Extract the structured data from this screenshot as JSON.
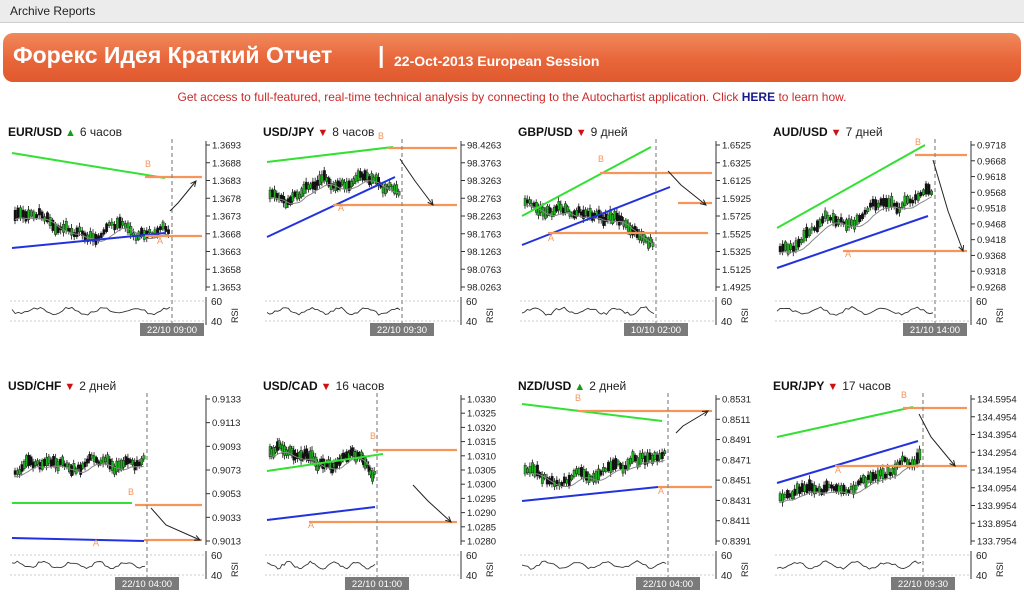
{
  "header": {
    "archive_label": "Archive Reports"
  },
  "banner": {
    "title": "Форекс Идея Краткий Отчет",
    "separator": "|",
    "session": "22-Oct-2013 European Session"
  },
  "promo": {
    "text_before": "Get access to full-featured, real-time technical analysis by connecting to the Autochartist application. Click ",
    "link": "HERE",
    "text_after": " to learn how."
  },
  "panels": [
    {
      "symbol": "EUR/USD",
      "direction": "up",
      "arrow": "▲",
      "timeframe": "6 часов",
      "ticks": [
        "1.3693",
        "1.3688",
        "1.3683",
        "1.3678",
        "1.3673",
        "1.3668",
        "1.3663",
        "1.3658",
        "1.3653"
      ],
      "rsi_labels": [
        "60",
        "40"
      ],
      "rsi_axis": "RSI",
      "date_label": "22/10 09:00",
      "pattern_labels": [
        "B",
        "A"
      ]
    },
    {
      "symbol": "USD/JPY",
      "direction": "down",
      "arrow": "▼",
      "timeframe": "8 часов",
      "ticks": [
        "98.4263",
        "98.3763",
        "98.3263",
        "98.2763",
        "98.2263",
        "98.1763",
        "98.1263",
        "98.0763",
        "98.0263"
      ],
      "rsi_labels": [
        "60",
        "40"
      ],
      "rsi_axis": "RSI",
      "date_label": "22/10 09:30",
      "pattern_labels": [
        "B",
        "A"
      ]
    },
    {
      "symbol": "GBP/USD",
      "direction": "down",
      "arrow": "▼",
      "timeframe": "9 дней",
      "ticks": [
        "1.6525",
        "1.6325",
        "1.6125",
        "1.5925",
        "1.5725",
        "1.5525",
        "1.5325",
        "1.5125",
        "1.4925"
      ],
      "rsi_labels": [
        "60",
        "40"
      ],
      "rsi_axis": "RSI",
      "date_label": "10/10 02:00",
      "pattern_labels": [
        "B",
        "A"
      ]
    },
    {
      "symbol": "AUD/USD",
      "direction": "down",
      "arrow": "▼",
      "timeframe": "7 дней",
      "ticks": [
        "0.9718",
        "0.9668",
        "0.9618",
        "0.9568",
        "0.9518",
        "0.9468",
        "0.9418",
        "0.9368",
        "0.9318",
        "0.9268"
      ],
      "rsi_labels": [
        "60",
        "40"
      ],
      "rsi_axis": "RSI",
      "date_label": "21/10 14:00",
      "pattern_labels": [
        "B",
        "A"
      ]
    },
    {
      "symbol": "USD/CHF",
      "direction": "down",
      "arrow": "▼",
      "timeframe": "2 дней",
      "ticks": [
        "0.9133",
        "0.9113",
        "0.9093",
        "0.9073",
        "0.9053",
        "0.9033",
        "0.9013"
      ],
      "rsi_labels": [
        "60",
        "40"
      ],
      "rsi_axis": "RSI",
      "date_label": "22/10 04:00",
      "pattern_labels": [
        "B",
        "A"
      ]
    },
    {
      "symbol": "USD/CAD",
      "direction": "down",
      "arrow": "▼",
      "timeframe": "16 часов",
      "ticks": [
        "1.0330",
        "1.0325",
        "1.0320",
        "1.0315",
        "1.0310",
        "1.0305",
        "1.0300",
        "1.0295",
        "1.0290",
        "1.0285",
        "1.0280"
      ],
      "rsi_labels": [
        "60",
        "40"
      ],
      "rsi_axis": "RSI",
      "date_label": "22/10 01:00",
      "pattern_labels": [
        "B",
        "A"
      ]
    },
    {
      "symbol": "NZD/USD",
      "direction": "up",
      "arrow": "▲",
      "timeframe": "2 дней",
      "ticks": [
        "0.8531",
        "0.8511",
        "0.8491",
        "0.8471",
        "0.8451",
        "0.8431",
        "0.8411",
        "0.8391"
      ],
      "rsi_labels": [
        "60",
        "40"
      ],
      "rsi_axis": "RSI",
      "date_label": "22/10 04:00",
      "pattern_labels": [
        "B",
        "A"
      ]
    },
    {
      "symbol": "EUR/JPY",
      "direction": "down",
      "arrow": "▼",
      "timeframe": "17 часов",
      "ticks": [
        "134.5954",
        "134.4954",
        "134.3954",
        "134.2954",
        "134.1954",
        "134.0954",
        "133.9954",
        "133.8954",
        "133.7954"
      ],
      "rsi_labels": [
        "60",
        "40"
      ],
      "rsi_axis": "RSI",
      "date_label": "22/10 09:30",
      "pattern_labels": [
        "B",
        "A"
      ]
    }
  ],
  "colors": {
    "banner": "#e8663a",
    "promo_text": "#cc2a2a",
    "promo_link": "#1a1a8c",
    "support_line": "#2233dd",
    "resistance_line": "#33e033",
    "level_line": "#f5955a",
    "candle_up": "#1fb01f",
    "candle_down": "#111111",
    "moving_avg": "#888888"
  }
}
